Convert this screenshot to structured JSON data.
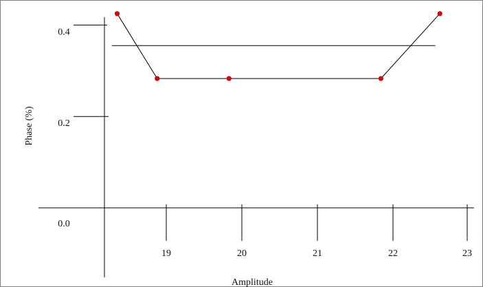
{
  "chart_data": {
    "type": "line",
    "title": "",
    "xlabel": "Amplitude",
    "ylabel": "Phase (%)",
    "x_ticks": [
      19,
      20,
      21,
      22,
      23
    ],
    "y_ticks": [
      "0.0",
      "0.2",
      "0.4"
    ],
    "xlim": [
      18.2,
      23.2
    ],
    "ylim": [
      -0.11,
      0.5
    ],
    "grid": false,
    "series": [
      {
        "x": [
          18.35,
          18.88,
          19.83,
          21.84,
          22.62
        ],
        "y": [
          0.425,
          0.283,
          0.283,
          0.283,
          0.425
        ],
        "line_color": "#000000",
        "marker_color": "#e00000"
      }
    ],
    "reference_line": {
      "y": 0.355,
      "x_start": 18.28,
      "x_end": 22.56
    }
  }
}
